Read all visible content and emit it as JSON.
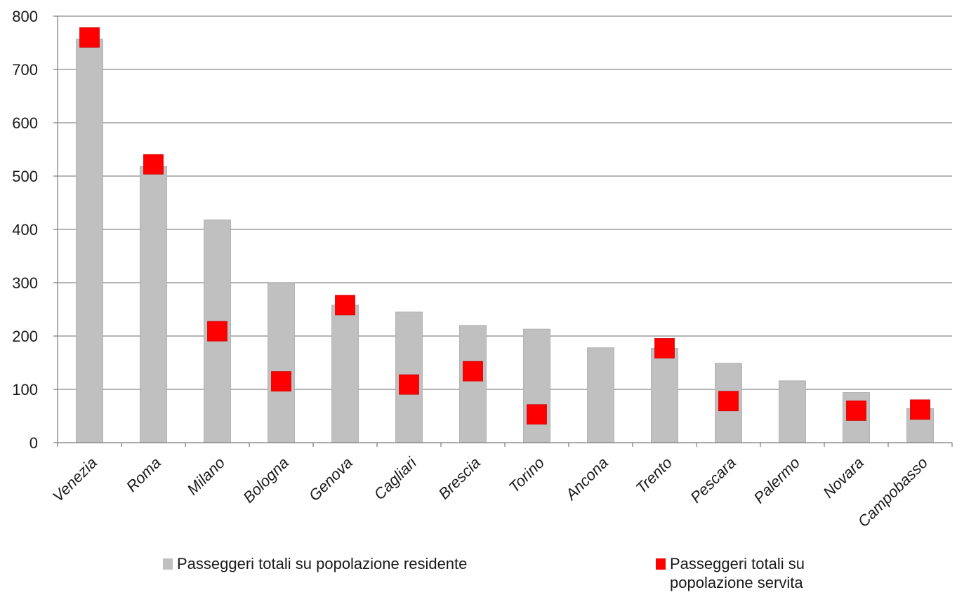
{
  "chart_data": {
    "type": "bar",
    "categories": [
      "Venezia",
      "Roma",
      "Milano",
      "Bologna",
      "Genova",
      "Cagliari",
      "Brescia",
      "Torino",
      "Ancona",
      "Trento",
      "Pescara",
      "Palermo",
      "Novara",
      "Campobasso"
    ],
    "series": [
      {
        "name": "Passeggeri totali su popolazione residente",
        "marker": "bar",
        "color": "#c0c0c0",
        "values": [
          757,
          518,
          418,
          300,
          258,
          245,
          220,
          213,
          178,
          177,
          149,
          116,
          94,
          64
        ]
      },
      {
        "name": "Passeggeri totali su popolazione servita",
        "marker": "square",
        "color": "#ff0000",
        "values": [
          760,
          522,
          209,
          115,
          258,
          109,
          134,
          53,
          null,
          177,
          78,
          null,
          60,
          62
        ]
      }
    ],
    "ylim": [
      0,
      800
    ],
    "yticks": [
      0,
      100,
      200,
      300,
      400,
      500,
      600,
      700,
      800
    ],
    "ytick_labels": [
      "0",
      "100",
      "200",
      "300",
      "400",
      "500",
      "600",
      "700",
      "800"
    ],
    "grid": "horizontal",
    "legend_position": "bottom",
    "title": "",
    "xlabel": "",
    "ylabel": ""
  },
  "legend": {
    "item1_label": "Passeggeri totali su popolazione residente",
    "item2_line1": "Passeggeri totali su",
    "item2_line2": "popolazione servita"
  }
}
